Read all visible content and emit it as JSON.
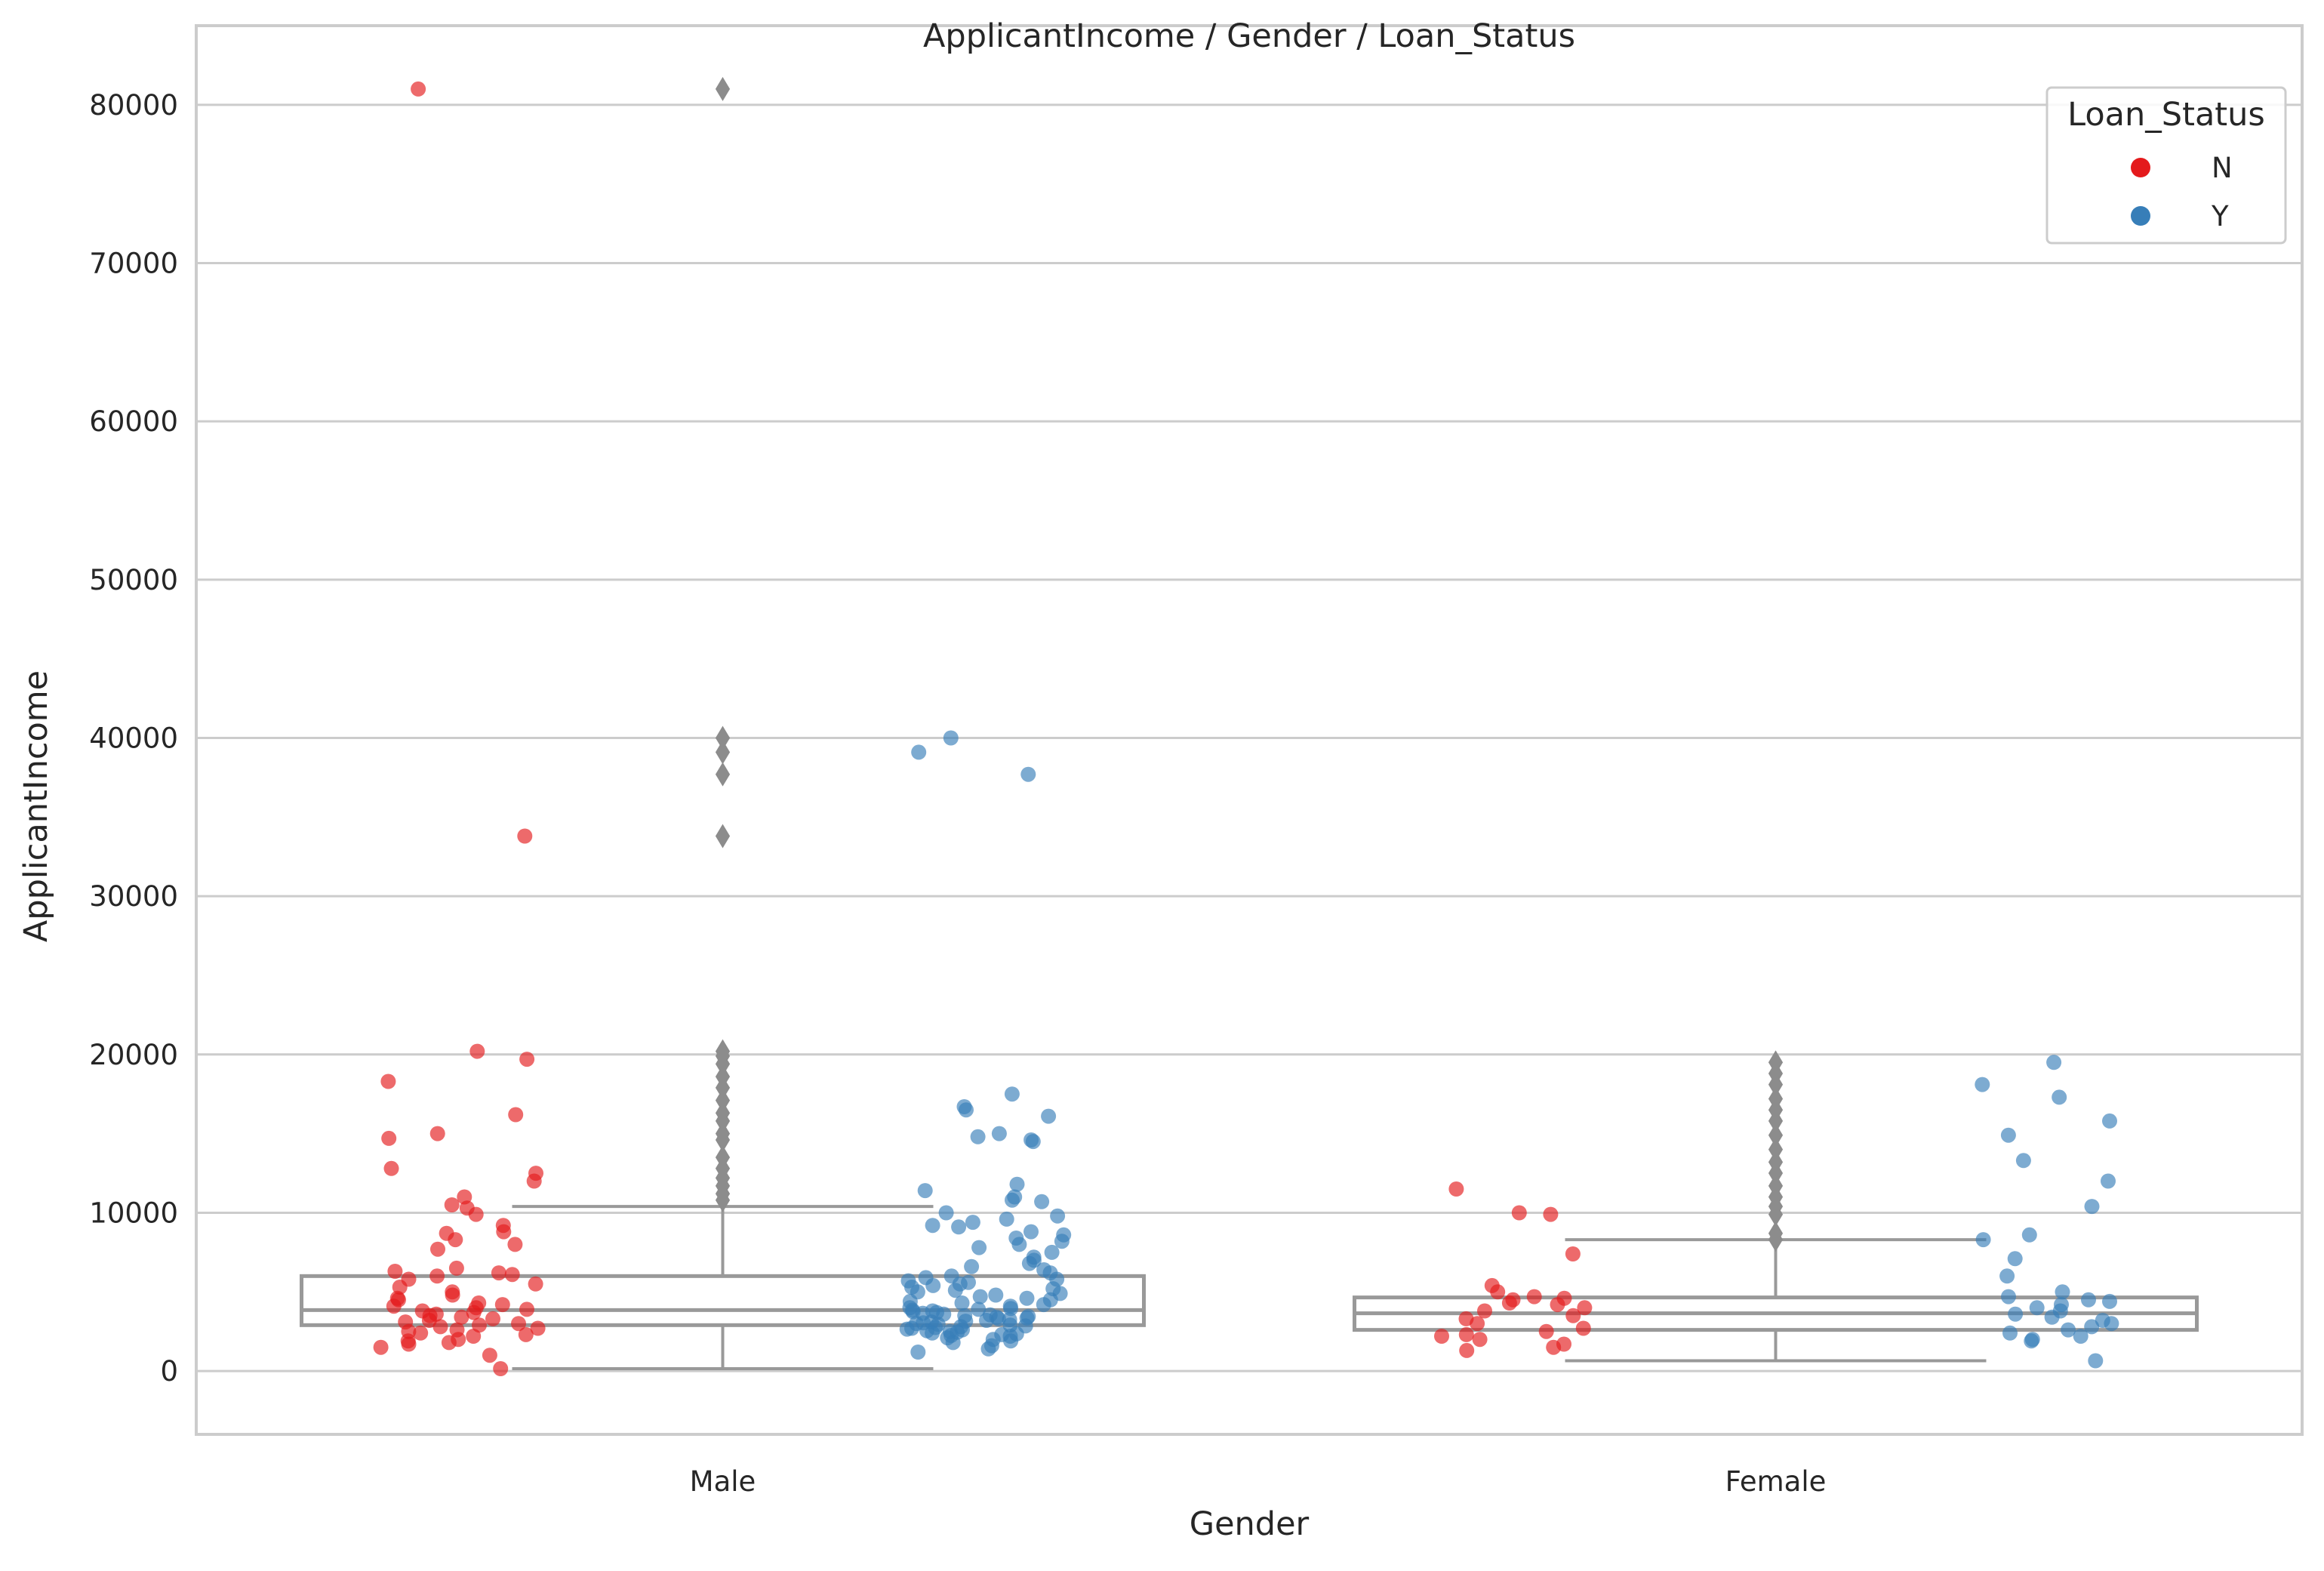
{
  "chart_data": {
    "type": "box+strip",
    "title": "ApplicantIncome / Gender / Loan_Status",
    "xlabel": "Gender",
    "ylabel": "ApplicantIncome",
    "categories": [
      "Male",
      "Female"
    ],
    "ylim": [
      -4000,
      85000
    ],
    "yticks": [
      0,
      10000,
      20000,
      30000,
      40000,
      50000,
      60000,
      70000,
      80000
    ],
    "grid": "horizontal",
    "legend": {
      "title": "Loan_Status",
      "placement": "top-right",
      "entries": [
        {
          "label": "N",
          "color": "#e41a1c"
        },
        {
          "label": "Y",
          "color": "#377eb8"
        }
      ]
    },
    "box_color": "#999999",
    "boxes": [
      {
        "category": "Male",
        "q1": 2900,
        "median": 3850,
        "q3": 6000,
        "whisker_low": 150,
        "whisker_high": 10400,
        "outliers": [
          10800,
          11200,
          11700,
          12200,
          12800,
          13500,
          14600,
          15000,
          15800,
          16300,
          17100,
          17900,
          18600,
          19400,
          19900,
          20200,
          33800,
          37700,
          39100,
          40000,
          81000
        ]
      },
      {
        "category": "Female",
        "q1": 2600,
        "median": 3650,
        "q3": 4650,
        "whisker_low": 650,
        "whisker_high": 8300,
        "outliers": [
          8300,
          8700,
          9900,
          10400,
          11000,
          11700,
          12500,
          13200,
          14000,
          14900,
          15800,
          16500,
          17200,
          18100,
          18800,
          19500
        ]
      }
    ],
    "series": [
      {
        "name": "N",
        "color": "#e41a1c",
        "points": [
          {
            "x": "Male",
            "y": 81000
          },
          {
            "x": "Male",
            "y": 33800
          },
          {
            "x": "Male",
            "y": 20200
          },
          {
            "x": "Male",
            "y": 19700
          },
          {
            "x": "Male",
            "y": 18300
          },
          {
            "x": "Male",
            "y": 16200
          },
          {
            "x": "Male",
            "y": 15000
          },
          {
            "x": "Male",
            "y": 14700
          },
          {
            "x": "Male",
            "y": 12800
          },
          {
            "x": "Male",
            "y": 12500
          },
          {
            "x": "Male",
            "y": 12000
          },
          {
            "x": "Male",
            "y": 11000
          },
          {
            "x": "Male",
            "y": 10500
          },
          {
            "x": "Male",
            "y": 10300
          },
          {
            "x": "Male",
            "y": 9900
          },
          {
            "x": "Male",
            "y": 9200
          },
          {
            "x": "Male",
            "y": 8800
          },
          {
            "x": "Male",
            "y": 8700
          },
          {
            "x": "Male",
            "y": 8300
          },
          {
            "x": "Male",
            "y": 8000
          },
          {
            "x": "Male",
            "y": 7700
          },
          {
            "x": "Male",
            "y": 6500
          },
          {
            "x": "Male",
            "y": 6300
          },
          {
            "x": "Male",
            "y": 6200
          },
          {
            "x": "Male",
            "y": 6100
          },
          {
            "x": "Male",
            "y": 6000
          },
          {
            "x": "Male",
            "y": 5800
          },
          {
            "x": "Male",
            "y": 5500
          },
          {
            "x": "Male",
            "y": 5300
          },
          {
            "x": "Male",
            "y": 5000
          },
          {
            "x": "Male",
            "y": 4800
          },
          {
            "x": "Male",
            "y": 4600
          },
          {
            "x": "Male",
            "y": 4500
          },
          {
            "x": "Male",
            "y": 4300
          },
          {
            "x": "Male",
            "y": 4200
          },
          {
            "x": "Male",
            "y": 4100
          },
          {
            "x": "Male",
            "y": 4000
          },
          {
            "x": "Male",
            "y": 3900
          },
          {
            "x": "Male",
            "y": 3800
          },
          {
            "x": "Male",
            "y": 3700
          },
          {
            "x": "Male",
            "y": 3600
          },
          {
            "x": "Male",
            "y": 3500
          },
          {
            "x": "Male",
            "y": 3400
          },
          {
            "x": "Male",
            "y": 3300
          },
          {
            "x": "Male",
            "y": 3200
          },
          {
            "x": "Male",
            "y": 3100
          },
          {
            "x": "Male",
            "y": 3000
          },
          {
            "x": "Male",
            "y": 2900
          },
          {
            "x": "Male",
            "y": 2800
          },
          {
            "x": "Male",
            "y": 2700
          },
          {
            "x": "Male",
            "y": 2600
          },
          {
            "x": "Male",
            "y": 2500
          },
          {
            "x": "Male",
            "y": 2400
          },
          {
            "x": "Male",
            "y": 2300
          },
          {
            "x": "Male",
            "y": 2200
          },
          {
            "x": "Male",
            "y": 2000
          },
          {
            "x": "Male",
            "y": 1900
          },
          {
            "x": "Male",
            "y": 1800
          },
          {
            "x": "Male",
            "y": 1700
          },
          {
            "x": "Male",
            "y": 1500
          },
          {
            "x": "Male",
            "y": 1000
          },
          {
            "x": "Male",
            "y": 150
          },
          {
            "x": "Female",
            "y": 11500
          },
          {
            "x": "Female",
            "y": 10000
          },
          {
            "x": "Female",
            "y": 9900
          },
          {
            "x": "Female",
            "y": 7400
          },
          {
            "x": "Female",
            "y": 5400
          },
          {
            "x": "Female",
            "y": 5000
          },
          {
            "x": "Female",
            "y": 4700
          },
          {
            "x": "Female",
            "y": 4600
          },
          {
            "x": "Female",
            "y": 4500
          },
          {
            "x": "Female",
            "y": 4300
          },
          {
            "x": "Female",
            "y": 4200
          },
          {
            "x": "Female",
            "y": 4000
          },
          {
            "x": "Female",
            "y": 3800
          },
          {
            "x": "Female",
            "y": 3500
          },
          {
            "x": "Female",
            "y": 3300
          },
          {
            "x": "Female",
            "y": 3000
          },
          {
            "x": "Female",
            "y": 2700
          },
          {
            "x": "Female",
            "y": 2500
          },
          {
            "x": "Female",
            "y": 2300
          },
          {
            "x": "Female",
            "y": 2200
          },
          {
            "x": "Female",
            "y": 2000
          },
          {
            "x": "Female",
            "y": 1700
          },
          {
            "x": "Female",
            "y": 1500
          },
          {
            "x": "Female",
            "y": 1300
          }
        ]
      },
      {
        "name": "Y",
        "color": "#377eb8",
        "points": [
          {
            "x": "Male",
            "y": 40000
          },
          {
            "x": "Male",
            "y": 39100
          },
          {
            "x": "Male",
            "y": 37700
          },
          {
            "x": "Male",
            "y": 17500
          },
          {
            "x": "Male",
            "y": 16700
          },
          {
            "x": "Male",
            "y": 16500
          },
          {
            "x": "Male",
            "y": 16100
          },
          {
            "x": "Male",
            "y": 15000
          },
          {
            "x": "Male",
            "y": 14800
          },
          {
            "x": "Male",
            "y": 14600
          },
          {
            "x": "Male",
            "y": 14500
          },
          {
            "x": "Male",
            "y": 11800
          },
          {
            "x": "Male",
            "y": 11400
          },
          {
            "x": "Male",
            "y": 11000
          },
          {
            "x": "Male",
            "y": 10800
          },
          {
            "x": "Male",
            "y": 10700
          },
          {
            "x": "Male",
            "y": 10000
          },
          {
            "x": "Male",
            "y": 9800
          },
          {
            "x": "Male",
            "y": 9600
          },
          {
            "x": "Male",
            "y": 9400
          },
          {
            "x": "Male",
            "y": 9200
          },
          {
            "x": "Male",
            "y": 9100
          },
          {
            "x": "Male",
            "y": 8800
          },
          {
            "x": "Male",
            "y": 8600
          },
          {
            "x": "Male",
            "y": 8400
          },
          {
            "x": "Male",
            "y": 8200
          },
          {
            "x": "Male",
            "y": 8000
          },
          {
            "x": "Male",
            "y": 7800
          },
          {
            "x": "Male",
            "y": 7500
          },
          {
            "x": "Male",
            "y": 7200
          },
          {
            "x": "Male",
            "y": 7000
          },
          {
            "x": "Male",
            "y": 6800
          },
          {
            "x": "Male",
            "y": 6600
          },
          {
            "x": "Male",
            "y": 6400
          },
          {
            "x": "Male",
            "y": 6200
          },
          {
            "x": "Male",
            "y": 6000
          },
          {
            "x": "Male",
            "y": 5900
          },
          {
            "x": "Male",
            "y": 5800
          },
          {
            "x": "Male",
            "y": 5700
          },
          {
            "x": "Male",
            "y": 5600
          },
          {
            "x": "Male",
            "y": 5500
          },
          {
            "x": "Male",
            "y": 5400
          },
          {
            "x": "Male",
            "y": 5300
          },
          {
            "x": "Male",
            "y": 5200
          },
          {
            "x": "Male",
            "y": 5100
          },
          {
            "x": "Male",
            "y": 5000
          },
          {
            "x": "Male",
            "y": 4900
          },
          {
            "x": "Male",
            "y": 4800
          },
          {
            "x": "Male",
            "y": 4700
          },
          {
            "x": "Male",
            "y": 4600
          },
          {
            "x": "Male",
            "y": 4500
          },
          {
            "x": "Male",
            "y": 4400
          },
          {
            "x": "Male",
            "y": 4300
          },
          {
            "x": "Male",
            "y": 4200
          },
          {
            "x": "Male",
            "y": 4100
          },
          {
            "x": "Male",
            "y": 4000
          },
          {
            "x": "Male",
            "y": 3950
          },
          {
            "x": "Male",
            "y": 3900
          },
          {
            "x": "Male",
            "y": 3850
          },
          {
            "x": "Male",
            "y": 3800
          },
          {
            "x": "Male",
            "y": 3750
          },
          {
            "x": "Male",
            "y": 3700
          },
          {
            "x": "Male",
            "y": 3650
          },
          {
            "x": "Male",
            "y": 3600
          },
          {
            "x": "Male",
            "y": 3550
          },
          {
            "x": "Male",
            "y": 3500
          },
          {
            "x": "Male",
            "y": 3450
          },
          {
            "x": "Male",
            "y": 3400
          },
          {
            "x": "Male",
            "y": 3350
          },
          {
            "x": "Male",
            "y": 3300
          },
          {
            "x": "Male",
            "y": 3250
          },
          {
            "x": "Male",
            "y": 3200
          },
          {
            "x": "Male",
            "y": 3150
          },
          {
            "x": "Male",
            "y": 3100
          },
          {
            "x": "Male",
            "y": 3050
          },
          {
            "x": "Male",
            "y": 3000
          },
          {
            "x": "Male",
            "y": 2950
          },
          {
            "x": "Male",
            "y": 2900
          },
          {
            "x": "Male",
            "y": 2850
          },
          {
            "x": "Male",
            "y": 2800
          },
          {
            "x": "Male",
            "y": 2750
          },
          {
            "x": "Male",
            "y": 2700
          },
          {
            "x": "Male",
            "y": 2650
          },
          {
            "x": "Male",
            "y": 2600
          },
          {
            "x": "Male",
            "y": 2550
          },
          {
            "x": "Male",
            "y": 2500
          },
          {
            "x": "Male",
            "y": 2450
          },
          {
            "x": "Male",
            "y": 2400
          },
          {
            "x": "Male",
            "y": 2350
          },
          {
            "x": "Male",
            "y": 2300
          },
          {
            "x": "Male",
            "y": 2250
          },
          {
            "x": "Male",
            "y": 2200
          },
          {
            "x": "Male",
            "y": 2100
          },
          {
            "x": "Male",
            "y": 2000
          },
          {
            "x": "Male",
            "y": 1900
          },
          {
            "x": "Male",
            "y": 1800
          },
          {
            "x": "Male",
            "y": 1600
          },
          {
            "x": "Male",
            "y": 1400
          },
          {
            "x": "Male",
            "y": 1200
          },
          {
            "x": "Female",
            "y": 19500
          },
          {
            "x": "Female",
            "y": 18100
          },
          {
            "x": "Female",
            "y": 17300
          },
          {
            "x": "Female",
            "y": 15800
          },
          {
            "x": "Female",
            "y": 14900
          },
          {
            "x": "Female",
            "y": 13300
          },
          {
            "x": "Female",
            "y": 12000
          },
          {
            "x": "Female",
            "y": 10400
          },
          {
            "x": "Female",
            "y": 8600
          },
          {
            "x": "Female",
            "y": 8300
          },
          {
            "x": "Female",
            "y": 7100
          },
          {
            "x": "Female",
            "y": 6000
          },
          {
            "x": "Female",
            "y": 5000
          },
          {
            "x": "Female",
            "y": 4700
          },
          {
            "x": "Female",
            "y": 4500
          },
          {
            "x": "Female",
            "y": 4400
          },
          {
            "x": "Female",
            "y": 4200
          },
          {
            "x": "Female",
            "y": 4000
          },
          {
            "x": "Female",
            "y": 3800
          },
          {
            "x": "Female",
            "y": 3600
          },
          {
            "x": "Female",
            "y": 3400
          },
          {
            "x": "Female",
            "y": 3200
          },
          {
            "x": "Female",
            "y": 3000
          },
          {
            "x": "Female",
            "y": 2800
          },
          {
            "x": "Female",
            "y": 2600
          },
          {
            "x": "Female",
            "y": 2400
          },
          {
            "x": "Female",
            "y": 2200
          },
          {
            "x": "Female",
            "y": 2000
          },
          {
            "x": "Female",
            "y": 1900
          },
          {
            "x": "Female",
            "y": 650
          }
        ]
      }
    ]
  }
}
